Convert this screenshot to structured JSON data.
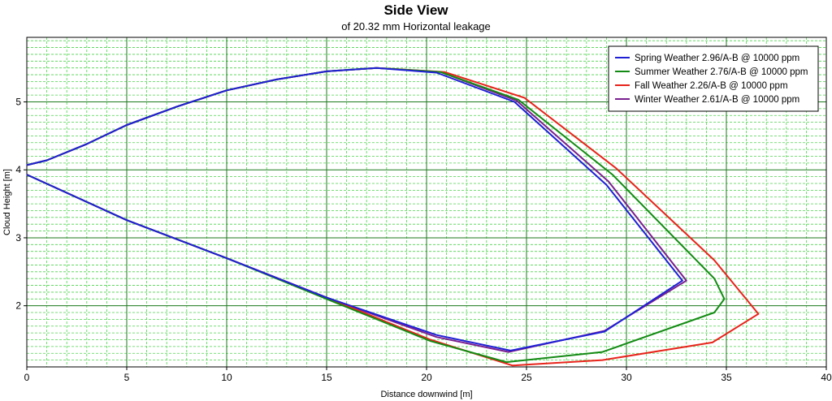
{
  "chart_data": {
    "type": "line",
    "title": "Side View",
    "subtitle": "of 20.32 mm Horizontal leakage",
    "xlabel": "Distance downwind [m]",
    "ylabel": "Cloud Height [m]",
    "xlim": [
      0,
      40
    ],
    "ylim": [
      1.1,
      5.95
    ],
    "xticks": [
      0,
      5,
      10,
      15,
      20,
      25,
      30,
      35,
      40
    ],
    "yticks": [
      2,
      3,
      4,
      5
    ],
    "grid": true,
    "legend_position": "top-right",
    "series": [
      {
        "name": "Spring Weather 2.96/A-B @ 10000 ppm",
        "color": "#1f1fd6",
        "points": [
          [
            0,
            4.07
          ],
          [
            1,
            4.14
          ],
          [
            3,
            4.38
          ],
          [
            5,
            4.66
          ],
          [
            7.5,
            4.93
          ],
          [
            10,
            5.17
          ],
          [
            12.5,
            5.33
          ],
          [
            15,
            5.45
          ],
          [
            17.5,
            5.5
          ],
          [
            20.5,
            5.43
          ],
          [
            24.4,
            5.0
          ],
          [
            29,
            3.78
          ],
          [
            32.8,
            2.37
          ],
          [
            28.9,
            1.62
          ],
          [
            24.2,
            1.34
          ],
          [
            20.5,
            1.57
          ],
          [
            15,
            2.12
          ],
          [
            10,
            2.7
          ],
          [
            5,
            3.26
          ],
          [
            0,
            3.93
          ]
        ]
      },
      {
        "name": "Summer Weather 2.76/A-B @ 10000 ppm",
        "color": "#138a13",
        "points": [
          [
            0,
            4.07
          ],
          [
            1,
            4.14
          ],
          [
            3,
            4.38
          ],
          [
            5,
            4.66
          ],
          [
            7.5,
            4.93
          ],
          [
            10,
            5.17
          ],
          [
            12.5,
            5.33
          ],
          [
            15,
            5.45
          ],
          [
            17.5,
            5.5
          ],
          [
            20.7,
            5.44
          ],
          [
            24.6,
            5.03
          ],
          [
            29.3,
            3.93
          ],
          [
            34.4,
            2.4
          ],
          [
            34.9,
            2.1
          ],
          [
            34.4,
            1.9
          ],
          [
            28.8,
            1.32
          ],
          [
            24,
            1.17
          ],
          [
            20.2,
            1.48
          ],
          [
            15,
            2.1
          ],
          [
            10,
            2.7
          ],
          [
            5,
            3.26
          ],
          [
            0,
            3.93
          ]
        ]
      },
      {
        "name": "Fall Weather 2.26/A-B @ 10000 ppm",
        "color": "#e8231a",
        "points": [
          [
            0,
            4.07
          ],
          [
            1,
            4.14
          ],
          [
            3,
            4.38
          ],
          [
            5,
            4.66
          ],
          [
            7.5,
            4.93
          ],
          [
            10,
            5.17
          ],
          [
            12.5,
            5.33
          ],
          [
            15,
            5.45
          ],
          [
            17.5,
            5.5
          ],
          [
            20.9,
            5.44
          ],
          [
            24.9,
            5.06
          ],
          [
            29.5,
            4.02
          ],
          [
            34.4,
            2.67
          ],
          [
            36.6,
            1.88
          ],
          [
            34.3,
            1.46
          ],
          [
            28.8,
            1.2
          ],
          [
            24.3,
            1.12
          ],
          [
            20.2,
            1.5
          ],
          [
            15,
            2.12
          ],
          [
            10,
            2.7
          ],
          [
            5,
            3.26
          ],
          [
            0,
            3.93
          ]
        ]
      },
      {
        "name": "Winter Weather 2.61/A-B @ 10000 ppm",
        "color": "#7a1f8f",
        "points": [
          [
            0,
            4.07
          ],
          [
            1,
            4.14
          ],
          [
            3,
            4.38
          ],
          [
            5,
            4.66
          ],
          [
            7.5,
            4.93
          ],
          [
            10,
            5.17
          ],
          [
            12.5,
            5.33
          ],
          [
            15,
            5.45
          ],
          [
            17.5,
            5.5
          ],
          [
            20.7,
            5.44
          ],
          [
            24.5,
            5.02
          ],
          [
            29.1,
            3.83
          ],
          [
            33,
            2.37
          ],
          [
            28.9,
            1.63
          ],
          [
            24.1,
            1.32
          ],
          [
            20.5,
            1.54
          ],
          [
            15,
            2.12
          ],
          [
            10,
            2.7
          ],
          [
            5,
            3.26
          ],
          [
            0,
            3.93
          ]
        ]
      }
    ]
  }
}
